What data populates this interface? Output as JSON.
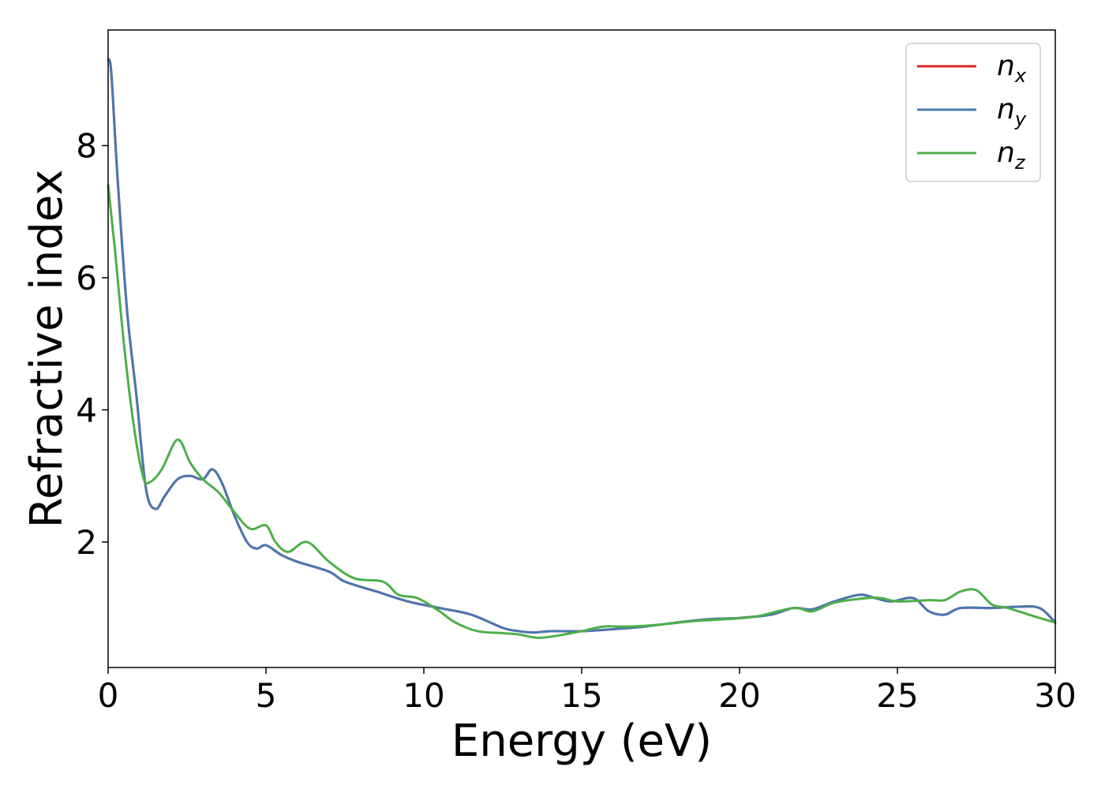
{
  "chart_data": {
    "type": "line",
    "title": "",
    "xlabel": "Energy (eV)",
    "ylabel": "Refractive index",
    "xlim": [
      0,
      30
    ],
    "ylim": [
      0.1,
      9.75
    ],
    "xticks": [
      0,
      5,
      10,
      15,
      20,
      25,
      30
    ],
    "yticks": [
      2,
      4,
      6,
      8
    ],
    "grid": false,
    "legend": {
      "placement": "top-right"
    },
    "series": [
      {
        "name": "n",
        "subscript": "x",
        "color": "#d62728",
        "x": [
          0,
          0.1,
          0.3,
          0.6,
          0.9,
          1.2,
          1.5,
          1.8,
          2.2,
          2.6,
          3.0,
          3.3,
          3.6,
          4.0,
          4.4,
          4.7,
          5.0,
          5.5,
          6.0,
          7.0,
          7.5,
          8.5,
          9.5,
          10.5,
          11.5,
          12.5,
          13.0,
          13.5,
          14.0,
          15.0,
          16.0,
          17.0,
          18.0,
          19.0,
          20.0,
          21.0,
          21.7,
          22.3,
          23.0,
          23.8,
          24.3,
          24.8,
          25.5,
          26.0,
          26.5,
          27.0,
          28.0,
          28.8,
          29.5,
          30.0
        ],
        "y": [
          9.3,
          9.1,
          7.5,
          5.5,
          4.2,
          2.8,
          2.5,
          2.7,
          2.95,
          3.0,
          2.95,
          3.1,
          2.9,
          2.4,
          2.0,
          1.9,
          1.95,
          1.8,
          1.7,
          1.55,
          1.4,
          1.25,
          1.1,
          1.0,
          0.9,
          0.7,
          0.65,
          0.63,
          0.65,
          0.65,
          0.68,
          0.72,
          0.78,
          0.83,
          0.85,
          0.9,
          1.0,
          0.98,
          1.1,
          1.2,
          1.15,
          1.1,
          1.15,
          0.95,
          0.9,
          1.0,
          1.0,
          1.02,
          1.0,
          0.78
        ]
      },
      {
        "name": "n",
        "subscript": "y",
        "color": "#4a78b0",
        "x": [
          0,
          0.1,
          0.3,
          0.6,
          0.9,
          1.2,
          1.5,
          1.8,
          2.2,
          2.6,
          3.0,
          3.3,
          3.6,
          4.0,
          4.4,
          4.7,
          5.0,
          5.5,
          6.0,
          7.0,
          7.5,
          8.5,
          9.5,
          10.5,
          11.5,
          12.5,
          13.0,
          13.5,
          14.0,
          15.0,
          16.0,
          17.0,
          18.0,
          19.0,
          20.0,
          21.0,
          21.7,
          22.3,
          23.0,
          23.8,
          24.3,
          24.8,
          25.5,
          26.0,
          26.5,
          27.0,
          28.0,
          28.8,
          29.5,
          30.0
        ],
        "y": [
          9.3,
          9.1,
          7.5,
          5.5,
          4.2,
          2.8,
          2.5,
          2.7,
          2.95,
          3.0,
          2.95,
          3.1,
          2.9,
          2.4,
          2.0,
          1.9,
          1.95,
          1.8,
          1.7,
          1.55,
          1.4,
          1.25,
          1.1,
          1.0,
          0.9,
          0.7,
          0.65,
          0.63,
          0.65,
          0.65,
          0.68,
          0.72,
          0.78,
          0.83,
          0.85,
          0.9,
          1.0,
          0.98,
          1.1,
          1.2,
          1.15,
          1.1,
          1.15,
          0.95,
          0.9,
          1.0,
          1.0,
          1.02,
          1.0,
          0.78
        ]
      },
      {
        "name": "n",
        "subscript": "z",
        "color": "#4daf4a",
        "x": [
          0,
          0.2,
          0.5,
          0.8,
          1.1,
          1.3,
          1.7,
          2.2,
          2.6,
          3.0,
          3.5,
          4.0,
          4.5,
          5.0,
          5.3,
          5.7,
          6.3,
          7.0,
          7.8,
          8.7,
          9.2,
          9.8,
          10.5,
          11.0,
          11.7,
          12.5,
          13.0,
          13.6,
          14.2,
          15.0,
          15.7,
          16.5,
          17.5,
          18.5,
          19.5,
          20.5,
          21.7,
          22.3,
          23.0,
          24.0,
          24.5,
          25.0,
          26.0,
          26.5,
          27.0,
          27.5,
          28.0,
          28.5,
          29.5,
          30.0
        ],
        "y": [
          7.4,
          6.5,
          5.0,
          3.8,
          3.0,
          2.9,
          3.1,
          3.55,
          3.2,
          2.95,
          2.75,
          2.45,
          2.2,
          2.25,
          2.0,
          1.85,
          2.0,
          1.7,
          1.45,
          1.4,
          1.2,
          1.15,
          0.95,
          0.78,
          0.65,
          0.62,
          0.6,
          0.55,
          0.58,
          0.65,
          0.72,
          0.72,
          0.75,
          0.8,
          0.83,
          0.87,
          1.0,
          0.95,
          1.08,
          1.15,
          1.15,
          1.1,
          1.12,
          1.12,
          1.25,
          1.27,
          1.05,
          1.0,
          0.85,
          0.78
        ]
      }
    ]
  }
}
